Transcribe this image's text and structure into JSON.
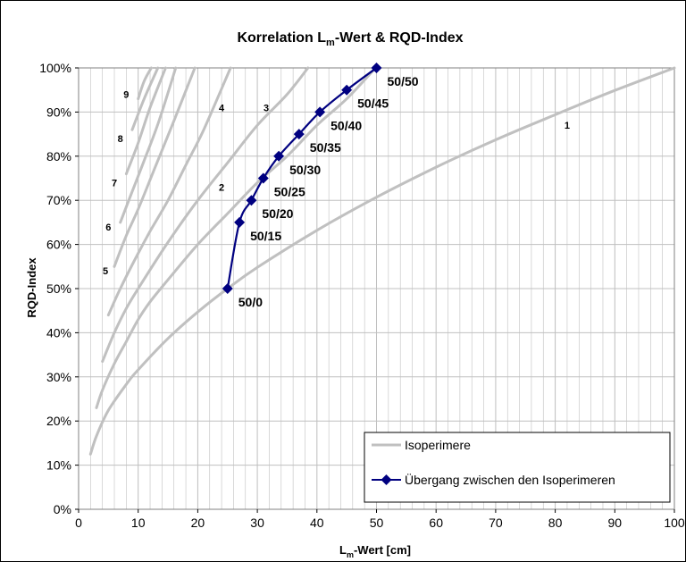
{
  "chart_data": {
    "type": "line",
    "title": {
      "pre": "Korrelation L",
      "sub": "m",
      "post": "-Wert & RQD-Index"
    },
    "xlabel": {
      "pre": "L",
      "sub": "m",
      "post": "-Wert [cm]"
    },
    "ylabel": "RQD-Index",
    "xlim": [
      0,
      100
    ],
    "ylim": [
      0,
      1
    ],
    "x_ticks": [
      0,
      10,
      20,
      30,
      40,
      50,
      60,
      70,
      80,
      90,
      100
    ],
    "x_tick_labels": [
      "0",
      "10",
      "20",
      "30",
      "40",
      "50",
      "60",
      "70",
      "80",
      "90",
      "100"
    ],
    "y_ticks": [
      0,
      0.1,
      0.2,
      0.3,
      0.4,
      0.5,
      0.6,
      0.7,
      0.8,
      0.9,
      1.0
    ],
    "y_tick_labels": [
      "0%",
      "10%",
      "20%",
      "30%",
      "40%",
      "50%",
      "60%",
      "70%",
      "80%",
      "90%",
      "100%"
    ],
    "grid": {
      "major": true,
      "minor_x_step": 2
    },
    "legend_position": "bottom-right",
    "colors": {
      "isoperimeter": "#c0c0c0",
      "transition": "#000080",
      "grid": "#c0c0c0"
    },
    "series": [
      {
        "name": "Isoperimere",
        "color": "#c0c0c0",
        "curves": [
          {
            "label": "1",
            "x": [
              2,
              3,
              5,
              8,
              10,
              15,
              20,
              25,
              30,
              40,
              50,
              60,
              70,
              80,
              90,
              100
            ],
            "y": [
              0.125,
              0.166,
              0.224,
              0.283,
              0.316,
              0.387,
              0.447,
              0.5,
              0.548,
              0.632,
              0.707,
              0.775,
              0.837,
              0.894,
              0.949,
              1.0
            ]
          },
          {
            "label": "2",
            "x": [
              3,
              4,
              6,
              8,
              10,
              12,
              15,
              20,
              25,
              30,
              35,
              40,
              45,
              49.5
            ],
            "y": [
              0.23,
              0.27,
              0.33,
              0.38,
              0.43,
              0.47,
              0.52,
              0.6,
              0.67,
              0.74,
              0.8,
              0.87,
              0.93,
              0.995
            ]
          },
          {
            "label": "3",
            "x": [
              4,
              6,
              8,
              10,
              15,
              20,
              25,
              30,
              35,
              38.5
            ],
            "y": [
              0.335,
              0.4,
              0.455,
              0.5,
              0.605,
              0.7,
              0.785,
              0.87,
              0.94,
              1.0
            ]
          },
          {
            "label": "4",
            "x": [
              5,
              7,
              10,
              12,
              15,
              18,
              21,
              25.5
            ],
            "y": [
              0.44,
              0.5,
              0.58,
              0.63,
              0.7,
              0.78,
              0.86,
              1.0
            ]
          },
          {
            "label": "5",
            "x": [
              6,
              8,
              10,
              13,
              16,
              19.5
            ],
            "y": [
              0.55,
              0.62,
              0.68,
              0.78,
              0.88,
              1.0
            ]
          },
          {
            "label": "6",
            "x": [
              7,
              9,
              11,
              13.5,
              16.3
            ],
            "y": [
              0.65,
              0.72,
              0.79,
              0.88,
              1.0
            ]
          },
          {
            "label": "7",
            "x": [
              8,
              10,
              12,
              14.6
            ],
            "y": [
              0.76,
              0.83,
              0.91,
              1.0
            ]
          },
          {
            "label": "8",
            "x": [
              9,
              11,
              13.3
            ],
            "y": [
              0.86,
              0.93,
              1.0
            ]
          },
          {
            "label": "9",
            "x": [
              10,
              11,
              12.2
            ],
            "y": [
              0.93,
              0.97,
              1.0
            ]
          }
        ]
      },
      {
        "name": "Übergang zwischen den Isoperimeren",
        "color": "#000080",
        "marker": "diamond",
        "points": [
          {
            "x": 25,
            "y": 0.5,
            "label": "50/0"
          },
          {
            "x": 27,
            "y": 0.65,
            "label": "50/15"
          },
          {
            "x": 29,
            "y": 0.7,
            "label": "50/20"
          },
          {
            "x": 31,
            "y": 0.75,
            "label": "50/25"
          },
          {
            "x": 33.6,
            "y": 0.8,
            "label": "50/30"
          },
          {
            "x": 37,
            "y": 0.85,
            "label": "50/35"
          },
          {
            "x": 40.5,
            "y": 0.9,
            "label": "50/40"
          },
          {
            "x": 45,
            "y": 0.95,
            "label": "50/45"
          },
          {
            "x": 50,
            "y": 1.0,
            "label": "50/50"
          }
        ]
      }
    ],
    "curve_label_positions": [
      {
        "label": "1",
        "x": 82,
        "y": 0.87
      },
      {
        "label": "2",
        "x": 24,
        "y": 0.73
      },
      {
        "label": "3",
        "x": 31.5,
        "y": 0.91
      },
      {
        "label": "4",
        "x": 24,
        "y": 0.91
      },
      {
        "label": "5",
        "x": 4.5,
        "y": 0.54
      },
      {
        "label": "6",
        "x": 5,
        "y": 0.64
      },
      {
        "label": "7",
        "x": 6,
        "y": 0.74
      },
      {
        "label": "8",
        "x": 7,
        "y": 0.84
      },
      {
        "label": "9",
        "x": 8,
        "y": 0.94
      }
    ]
  }
}
